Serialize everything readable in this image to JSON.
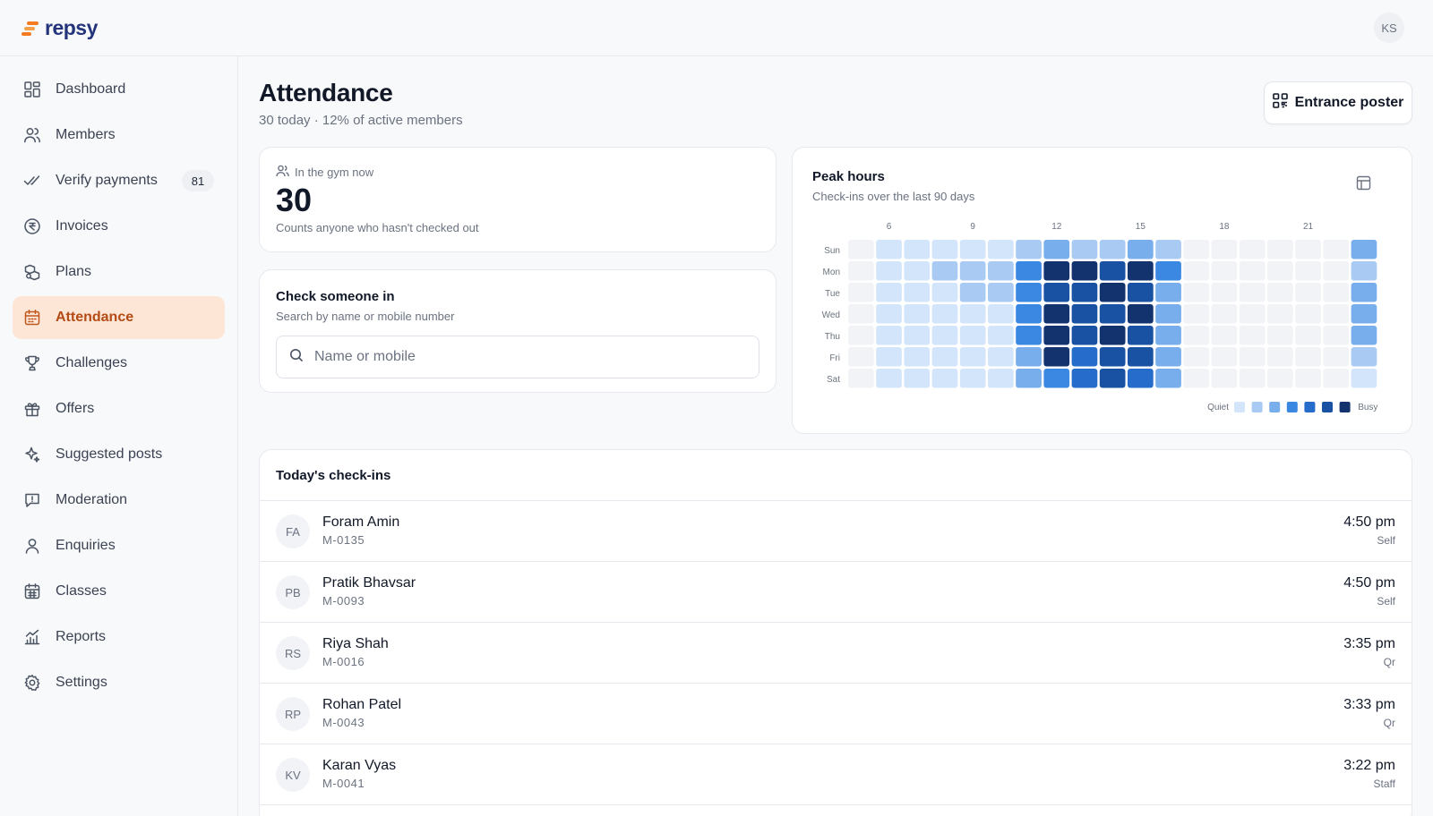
{
  "app": {
    "name": "repsy",
    "user_initials": "KS"
  },
  "sidebar": {
    "items": [
      {
        "key": "dashboard",
        "label": "Dashboard",
        "icon": "dashboard-icon"
      },
      {
        "key": "members",
        "label": "Members",
        "icon": "users-icon"
      },
      {
        "key": "verify-payments",
        "label": "Verify payments",
        "icon": "check-double-icon",
        "badge": "81"
      },
      {
        "key": "invoices",
        "label": "Invoices",
        "icon": "currency-icon"
      },
      {
        "key": "plans",
        "label": "Plans",
        "icon": "plans-icon"
      },
      {
        "key": "attendance",
        "label": "Attendance",
        "icon": "calendar-icon",
        "active": true
      },
      {
        "key": "challenges",
        "label": "Challenges",
        "icon": "trophy-icon"
      },
      {
        "key": "offers",
        "label": "Offers",
        "icon": "gift-icon"
      },
      {
        "key": "suggested-posts",
        "label": "Suggested posts",
        "icon": "sparkle-icon"
      },
      {
        "key": "moderation",
        "label": "Moderation",
        "icon": "message-alert-icon"
      },
      {
        "key": "enquiries",
        "label": "Enquiries",
        "icon": "user-icon"
      },
      {
        "key": "classes",
        "label": "Classes",
        "icon": "calendar-grid-icon"
      },
      {
        "key": "reports",
        "label": "Reports",
        "icon": "chart-icon"
      },
      {
        "key": "settings",
        "label": "Settings",
        "icon": "gear-icon"
      }
    ]
  },
  "page": {
    "title": "Attendance",
    "subtitle": "30 today · 12% of active members",
    "poster_button": "Entrance poster"
  },
  "gym_now": {
    "label": "In the gym now",
    "count": "30",
    "note": "Counts anyone who hasn't checked out"
  },
  "check_in": {
    "title": "Check someone in",
    "subtitle": "Search by name or mobile number",
    "placeholder": "Name or mobile"
  },
  "peak_hours": {
    "title": "Peak hours",
    "subtitle": "Check-ins over the last 90 days",
    "legend_low": "Quiet",
    "legend_high": "Busy",
    "legend_colors": [
      "#d3e5fb",
      "#a9cbf3",
      "#79aeec",
      "#3b88e3",
      "#266cca",
      "#1a52a3",
      "#12336d"
    ],
    "empty_color": "#f1f3f6"
  },
  "chart_data": {
    "type": "heatmap",
    "title": "Peak hours",
    "subtitle": "Check-ins over the last 90 days",
    "x_tick_labels": [
      "6",
      "9",
      "12",
      "15",
      "18",
      "21"
    ],
    "x_tick_hours": [
      6,
      9,
      12,
      15,
      18,
      21
    ],
    "hours": [
      5,
      6,
      7,
      8,
      9,
      10,
      11,
      12,
      13,
      14,
      15,
      16,
      17,
      18,
      19,
      20,
      21,
      22,
      23
    ],
    "rows": [
      "Sun",
      "Mon",
      "Tue",
      "Wed",
      "Thu",
      "Fri",
      "Sat"
    ],
    "scale": [
      0,
      7
    ],
    "values": [
      [
        0,
        1,
        1,
        1,
        1,
        1,
        2,
        3,
        2,
        2,
        3,
        2,
        0,
        0,
        0,
        0,
        0,
        0,
        3
      ],
      [
        0,
        1,
        1,
        2,
        2,
        2,
        4,
        7,
        7,
        6,
        7,
        4,
        0,
        0,
        0,
        0,
        0,
        0,
        2
      ],
      [
        0,
        1,
        1,
        1,
        2,
        2,
        4,
        6,
        6,
        7,
        6,
        3,
        0,
        0,
        0,
        0,
        0,
        0,
        3
      ],
      [
        0,
        1,
        1,
        1,
        1,
        1,
        4,
        7,
        6,
        6,
        7,
        3,
        0,
        0,
        0,
        0,
        0,
        0,
        3
      ],
      [
        0,
        1,
        1,
        1,
        1,
        1,
        4,
        7,
        6,
        7,
        6,
        3,
        0,
        0,
        0,
        0,
        0,
        0,
        3
      ],
      [
        0,
        1,
        1,
        1,
        1,
        1,
        3,
        7,
        5,
        6,
        6,
        3,
        0,
        0,
        0,
        0,
        0,
        0,
        2
      ],
      [
        0,
        1,
        1,
        1,
        1,
        1,
        3,
        4,
        5,
        6,
        5,
        3,
        0,
        0,
        0,
        0,
        0,
        0,
        1
      ]
    ],
    "legend": {
      "low": "Quiet",
      "high": "Busy"
    }
  },
  "today": {
    "title": "Today's check-ins",
    "rows": [
      {
        "initials": "FA",
        "name": "Foram Amin",
        "id": "M-0135",
        "time": "4:50 pm",
        "method": "Self"
      },
      {
        "initials": "PB",
        "name": "Pratik Bhavsar",
        "id": "M-0093",
        "time": "4:50 pm",
        "method": "Self"
      },
      {
        "initials": "RS",
        "name": "Riya Shah",
        "id": "M-0016",
        "time": "3:35 pm",
        "method": "Qr"
      },
      {
        "initials": "RP",
        "name": "Rohan Patel",
        "id": "M-0043",
        "time": "3:33 pm",
        "method": "Qr"
      },
      {
        "initials": "KV",
        "name": "Karan Vyas",
        "id": "M-0041",
        "time": "3:22 pm",
        "method": "Staff"
      }
    ]
  }
}
